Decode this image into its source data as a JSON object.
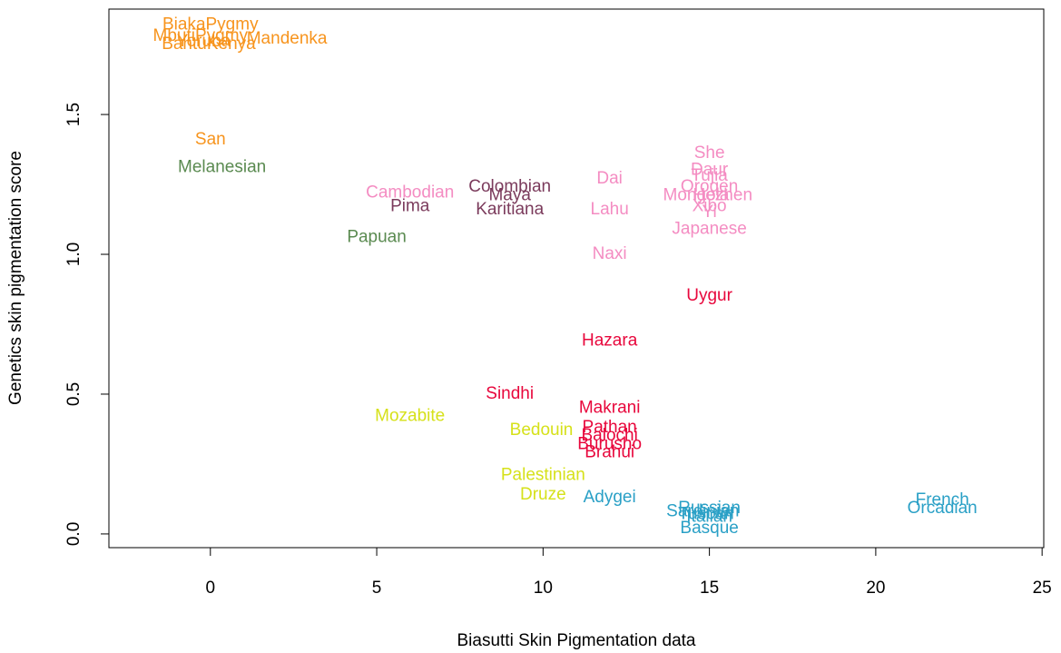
{
  "chart_data": {
    "type": "scatter",
    "x_label": "Biasutti Skin Pigmentation data",
    "y_label": "Genetics skin pigmentation score",
    "xlim": [
      -3.05,
      25.05
    ],
    "ylim": [
      -0.049,
      1.877
    ],
    "xticks": [
      0,
      5,
      10,
      15,
      20,
      25
    ],
    "yticks": [
      {
        "value": 0,
        "label": "0.0"
      },
      {
        "value": 0.5,
        "label": "0.5"
      },
      {
        "value": 1,
        "label": "1.0"
      },
      {
        "value": 1.5,
        "label": "1.5"
      }
    ],
    "series": [
      {
        "color": "#f7941d",
        "labels": [
          "BiakaPygmy",
          "MbutiPygmy",
          "Yoruba",
          "Mandenka",
          "BantuKenya",
          "San"
        ],
        "x": [
          0,
          -0.3,
          -0.2,
          2.3,
          -0.05,
          0
        ],
        "y": [
          1.82,
          1.78,
          1.76,
          1.77,
          1.75,
          1.41
        ]
      },
      {
        "color": "#5a8a50",
        "labels": [
          "Melanesian",
          "Papuan"
        ],
        "x": [
          0.35,
          5.0
        ],
        "y": [
          1.31,
          1.06
        ]
      },
      {
        "color": "#7b3b5c",
        "labels": [
          "Pima",
          "Colombian",
          "Maya",
          "Karitiana"
        ],
        "x": [
          6.0,
          9.0,
          9.0,
          9.0
        ],
        "y": [
          1.17,
          1.24,
          1.21,
          1.16
        ]
      },
      {
        "color": "#f48cc2",
        "labels": [
          "Cambodian",
          "Dai",
          "Lahu",
          "Naxi",
          "She",
          "Daur",
          "Tujia",
          "Oroqen",
          "Mongola",
          "Hezhen",
          "Xibo",
          "Yi",
          "Japanese"
        ],
        "x": [
          6.0,
          12.0,
          12.0,
          12.0,
          15.0,
          15.0,
          15.0,
          15.0,
          14.6,
          15.4,
          15.0,
          15.0,
          15.0
        ],
        "y": [
          1.22,
          1.27,
          1.16,
          1.0,
          1.36,
          1.3,
          1.28,
          1.24,
          1.21,
          1.21,
          1.17,
          1.15,
          1.09
        ]
      },
      {
        "color": "#e8073c",
        "labels": [
          "Uygur",
          "Hazara",
          "Sindhi",
          "Makrani",
          "Pathan",
          "Balochi",
          "Burusho",
          "Brahui"
        ],
        "x": [
          15.0,
          12.0,
          9.0,
          12.0,
          12.0,
          12.0,
          12.0,
          12.0
        ],
        "y": [
          0.85,
          0.69,
          0.5,
          0.45,
          0.38,
          0.35,
          0.32,
          0.29
        ]
      },
      {
        "color": "#d6e11a",
        "labels": [
          "Mozabite",
          "Bedouin",
          "Palestinian",
          "Druze"
        ],
        "x": [
          6.0,
          9.95,
          10.0,
          10.0
        ],
        "y": [
          0.42,
          0.37,
          0.21,
          0.14
        ]
      },
      {
        "color": "#2aa0c6",
        "labels": [
          "Adygei",
          "Russian",
          "Sardinian",
          "Tuscan",
          "Italian",
          "Basque",
          "French",
          "Orcadian"
        ],
        "x": [
          12.0,
          15.0,
          14.8,
          14.9,
          15.0,
          15.0,
          22.0,
          22.0
        ],
        "y": [
          0.13,
          0.09,
          0.08,
          0.07,
          0.06,
          0.02,
          0.12,
          0.09
        ]
      }
    ]
  }
}
